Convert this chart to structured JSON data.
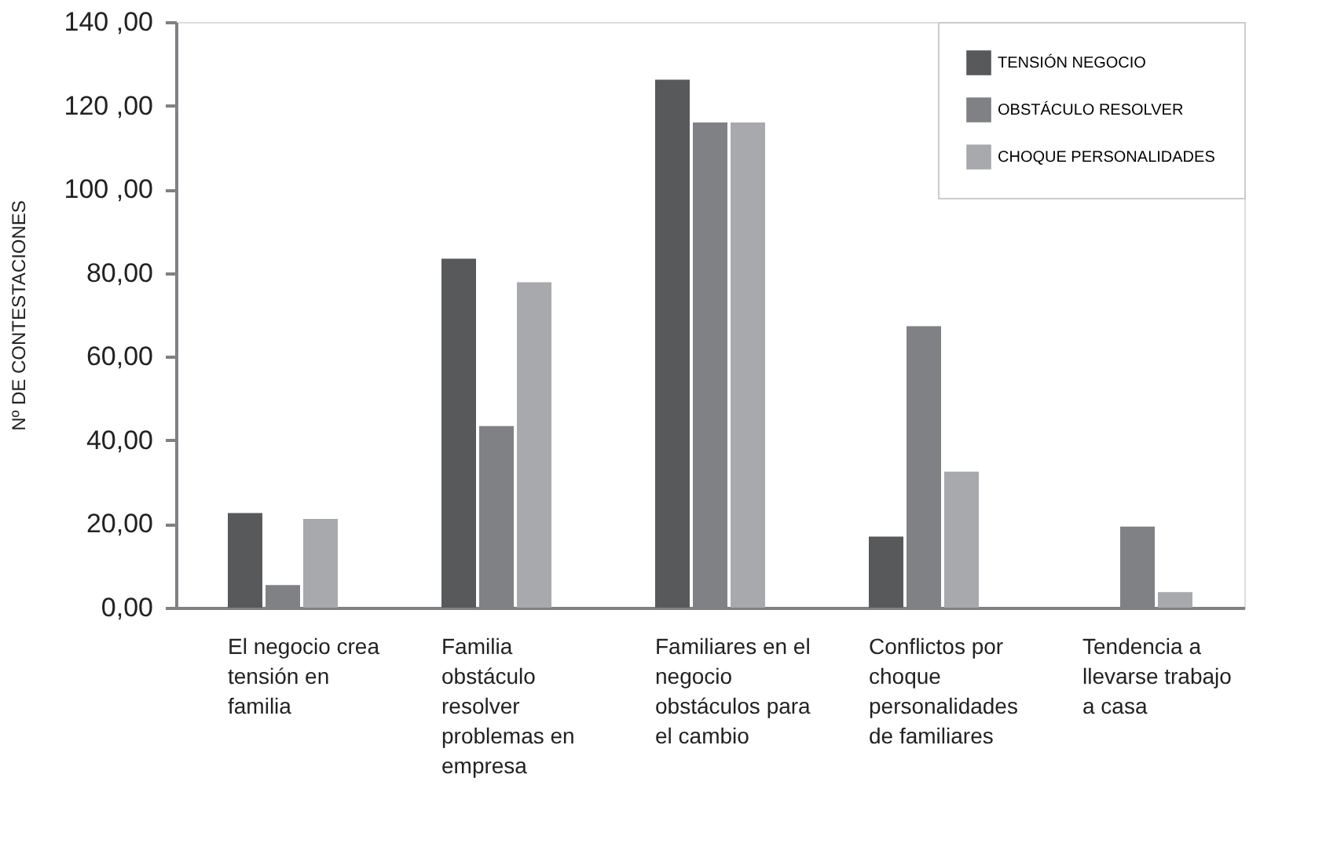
{
  "chart_data": {
    "type": "bar",
    "ylabel": "Nº DE CONTESTACIONES",
    "categories": [
      "El negocio crea tensión en familia",
      "Familia obstáculo resolver problemas en empresa",
      "Familiares en el negocio obstáculos para el cambio",
      "Conflictos por choque personalidades de familiares",
      "Tendencia a llevarse trabajo a casa"
    ],
    "series": [
      {
        "name": "TENSIÓN NEGOCIO",
        "color": "#58595b",
        "values": [
          22.6,
          83.4,
          126.2,
          17.0,
          null
        ]
      },
      {
        "name": "OBSTÁCULO RESOLVER",
        "color": "#808184",
        "values": [
          5.4,
          43.4,
          116.0,
          67.3,
          19.4
        ]
      },
      {
        "name": "CHOQUE PERSONALIDADES",
        "color": "#a7a9ac",
        "values": [
          21.2,
          77.8,
          116.0,
          32.5,
          3.7
        ]
      }
    ],
    "ylim": [
      0,
      140
    ],
    "yticks": [
      {
        "value": 0,
        "label": "0,00"
      },
      {
        "value": 20,
        "label": "20,00"
      },
      {
        "value": 40,
        "label": "40,00"
      },
      {
        "value": 60,
        "label": "60,00"
      },
      {
        "value": 80,
        "label": "80,00"
      },
      {
        "value": 100,
        "label": "100 ,00"
      },
      {
        "value": 120,
        "label": "120 ,00"
      },
      {
        "value": 140,
        "label": "140 ,00"
      }
    ],
    "grid": false,
    "legend": "top right"
  }
}
